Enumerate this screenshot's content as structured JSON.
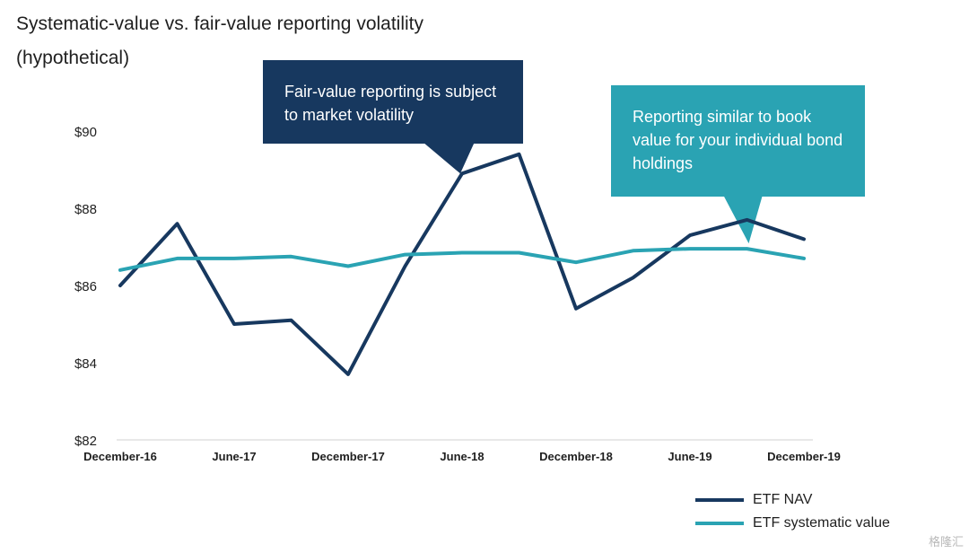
{
  "chart_data": {
    "type": "line",
    "title": "Systematic-value vs. fair-value reporting volatility",
    "subtitle": "(hypothetical)",
    "xlabel": "",
    "ylabel": "",
    "x_tick_labels": [
      "December-16",
      "June-17",
      "December-17",
      "June-18",
      "December-18",
      "June-19",
      "December-19"
    ],
    "x_periods": 13,
    "y_tick_labels": [
      "$82",
      "$84",
      "$86",
      "$88",
      "$90"
    ],
    "y_ticks": [
      82,
      84,
      86,
      88,
      90
    ],
    "ylim": [
      82,
      90
    ],
    "grid": false,
    "legend_position": "bottom-right",
    "series": [
      {
        "name": "ETF NAV",
        "color": "#17385f",
        "values": [
          86.0,
          87.6,
          85.0,
          85.1,
          83.7,
          86.5,
          88.9,
          89.4,
          85.4,
          86.2,
          87.3,
          87.7,
          87.2
        ]
      },
      {
        "name": "ETF systematic value",
        "color": "#2aa3b3",
        "values": [
          86.4,
          86.7,
          86.7,
          86.75,
          86.5,
          86.8,
          86.85,
          86.85,
          86.6,
          86.9,
          86.95,
          86.95,
          86.7
        ]
      }
    ],
    "annotations": [
      {
        "text": "Fair-value reporting is subject to market volatility",
        "color": "#17385f",
        "target_series": 0,
        "target_index": 6
      },
      {
        "text": "Reporting similar to book value for your individual bond holdings",
        "color": "#2aa3b3",
        "target_series": 1,
        "target_index": 11
      }
    ]
  },
  "watermark": "格隆汇"
}
